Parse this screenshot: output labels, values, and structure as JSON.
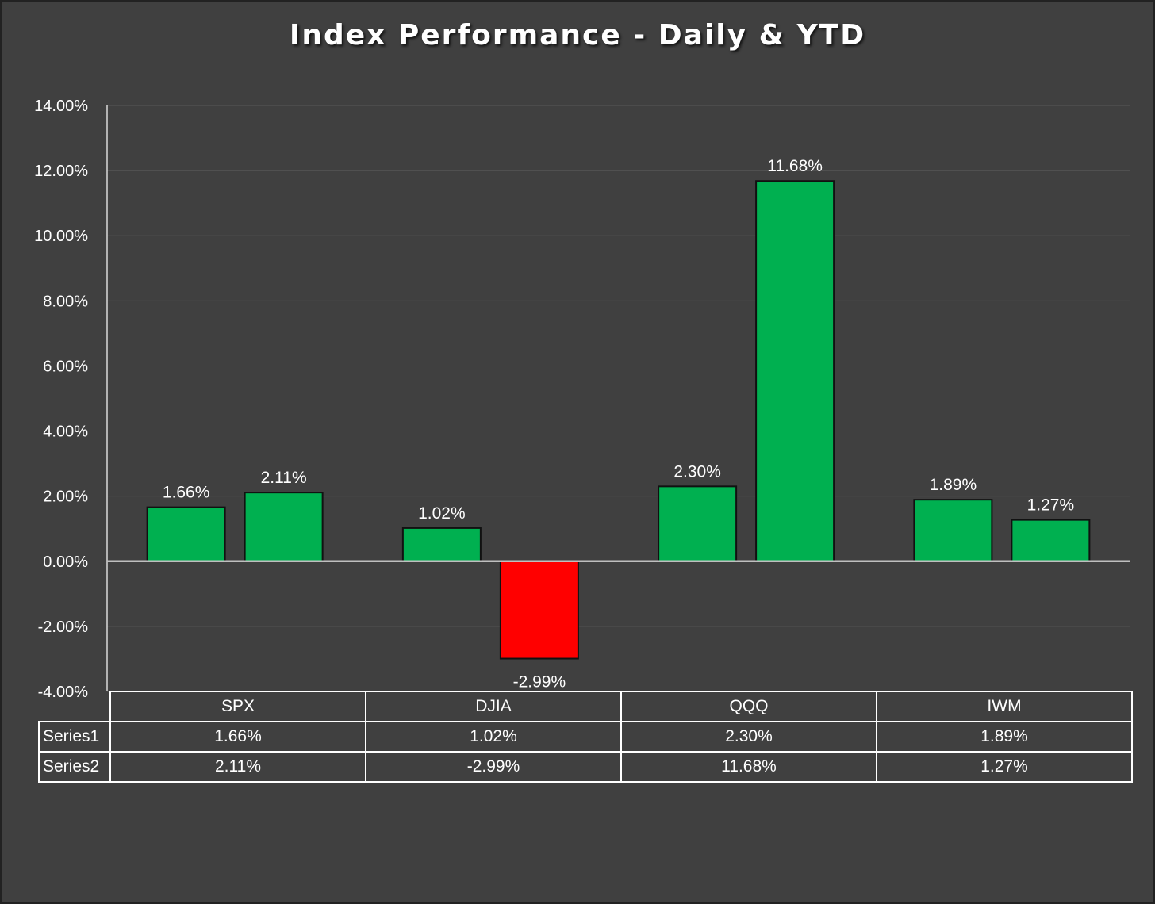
{
  "chart_data": {
    "type": "bar",
    "title": "Index Performance - Daily & YTD",
    "categories": [
      "SPX",
      "DJIA",
      "QQQ",
      "IWM"
    ],
    "series": [
      {
        "name": "Series1",
        "values": [
          1.66,
          1.02,
          2.3,
          1.89
        ],
        "labels": [
          "1.66%",
          "1.02%",
          "2.30%",
          "1.89%"
        ]
      },
      {
        "name": "Series2",
        "values": [
          2.11,
          -2.99,
          11.68,
          1.27
        ],
        "labels": [
          "2.11%",
          "-2.99%",
          "11.68%",
          "1.27%"
        ]
      }
    ],
    "ylim": [
      -4,
      14
    ],
    "yticks": [
      "-4.00%",
      "-2.00%",
      "0.00%",
      "2.00%",
      "4.00%",
      "6.00%",
      "8.00%",
      "10.00%",
      "12.00%",
      "14.00%"
    ],
    "ytick_values": [
      -4,
      -2,
      0,
      2,
      4,
      6,
      8,
      10,
      12,
      14
    ],
    "grid": true,
    "data_table": true,
    "colors": {
      "positive": "#00b050",
      "negative": "#ff0000",
      "background": "#404040",
      "gridline": "#595959"
    }
  }
}
